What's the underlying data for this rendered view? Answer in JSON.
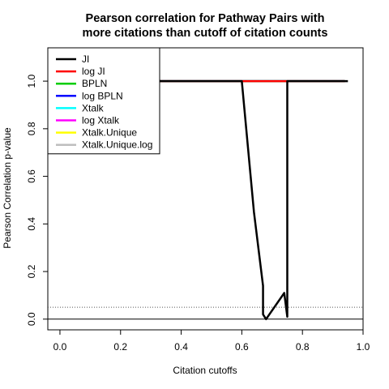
{
  "chart_data": {
    "type": "line",
    "title_line1": "Pearson correlation for Pathway Pairs with",
    "title_line2": "more citations than cutoff of citation counts",
    "xlabel": "Citation cutoffs",
    "ylabel": "Pearson Correlation p-value",
    "xlim": [
      -0.04,
      1.0
    ],
    "ylim": [
      -0.045,
      1.14
    ],
    "x_ticks": [
      0.0,
      0.2,
      0.4,
      0.6,
      0.8,
      1.0
    ],
    "x_tick_labels": [
      "0.0",
      "0.2",
      "0.4",
      "0.6",
      "0.8",
      "1.0"
    ],
    "y_ticks": [
      0.0,
      0.2,
      0.4,
      0.6,
      0.8,
      1.0
    ],
    "y_tick_labels": [
      "0.0",
      "0.2",
      "0.4",
      "0.6",
      "0.8",
      "1.0"
    ],
    "hline_solid": 0.0,
    "hline_dotted": 0.05,
    "legend_position": "top-left",
    "series": [
      {
        "name": "JI",
        "color": "#000000",
        "dash": "solid",
        "x": [
          0.0,
          0.6,
          0.64,
          0.67,
          0.67,
          0.68,
          0.74,
          0.75,
          0.75,
          0.95
        ],
        "y": [
          1.0,
          1.0,
          0.45,
          0.14,
          0.02,
          0.0,
          0.11,
          0.01,
          1.0,
          1.0
        ]
      },
      {
        "name": "log JI",
        "color": "#ff0000",
        "dash": "solid",
        "x": [
          0.0,
          0.94
        ],
        "y": [
          1.0,
          1.0
        ]
      },
      {
        "name": "BPLN",
        "color": "#00cd00",
        "dash": "solid",
        "x": [
          0.0,
          0.94
        ],
        "y": [
          1.0,
          1.0
        ]
      },
      {
        "name": "log BPLN",
        "color": "#0000ff",
        "dash": "solid",
        "x": [
          0.0,
          0.94
        ],
        "y": [
          1.0,
          1.0
        ]
      },
      {
        "name": "Xtalk",
        "color": "#00ffff",
        "dash": "solid",
        "x": [
          0.0,
          0.94
        ],
        "y": [
          1.0,
          1.0
        ]
      },
      {
        "name": "log Xtalk",
        "color": "#ff00ff",
        "dash": "solid",
        "x": [
          0.0,
          0.94
        ],
        "y": [
          1.0,
          1.0
        ]
      },
      {
        "name": "Xtalk.Unique",
        "color": "#ffff00",
        "dash": "dashed",
        "x": [
          0.0,
          0.94
        ],
        "y": [
          1.0,
          1.0
        ]
      },
      {
        "name": "Xtalk.Unique.log",
        "color": "#bebebe",
        "dash": "solid",
        "x": [
          0.0,
          0.0
        ],
        "y": [
          1.0,
          1.0
        ]
      }
    ]
  }
}
